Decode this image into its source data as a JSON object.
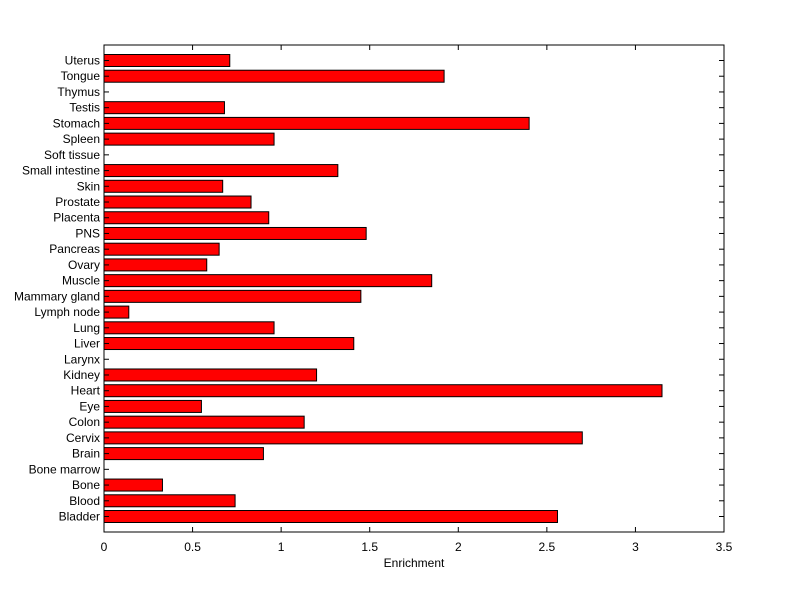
{
  "chart_data": {
    "type": "bar",
    "orientation": "horizontal",
    "title": "",
    "xlabel": "Enrichment",
    "ylabel": "",
    "xlim": [
      0,
      3.5
    ],
    "xticks": [
      0,
      0.5,
      1,
      1.5,
      2,
      2.5,
      3,
      3.5
    ],
    "xtick_labels": [
      "0",
      "0.5",
      "1",
      "1.5",
      "2",
      "2.5",
      "3",
      "3.5"
    ],
    "grid": false,
    "bar_color": "#ff0000",
    "bar_edge_color": "#000000",
    "categories": [
      "Bladder",
      "Blood",
      "Bone",
      "Bone marrow",
      "Brain",
      "Cervix",
      "Colon",
      "Eye",
      "Heart",
      "Kidney",
      "Larynx",
      "Liver",
      "Lung",
      "Lymph node",
      "Mammary gland",
      "Muscle",
      "Ovary",
      "Pancreas",
      "PNS",
      "Placenta",
      "Prostate",
      "Skin",
      "Small intestine",
      "Soft tissue",
      "Spleen",
      "Stomach",
      "Testis",
      "Thymus",
      "Tongue",
      "Uterus"
    ],
    "values": [
      2.56,
      0.74,
      0.33,
      0,
      0.9,
      2.7,
      1.13,
      0.55,
      3.15,
      1.2,
      0,
      1.41,
      0.96,
      0.14,
      1.45,
      1.85,
      0.58,
      0.65,
      1.48,
      0.93,
      0.83,
      0.67,
      1.32,
      0,
      0.96,
      2.4,
      0.68,
      0,
      1.92,
      0.71
    ]
  }
}
